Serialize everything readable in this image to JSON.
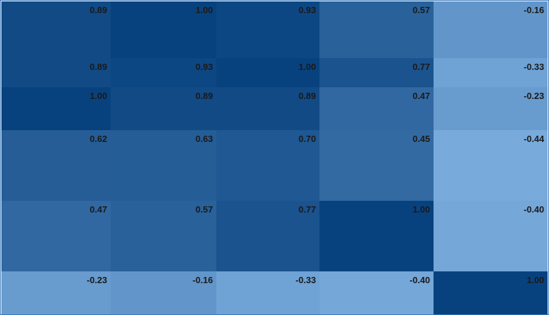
{
  "chart_data": {
    "type": "heatmap",
    "title": "",
    "xlabel": "",
    "ylabel": "",
    "values": [
      [
        "0.89",
        "1.00",
        "0.93",
        "0.57",
        "-0.16"
      ],
      [
        "0.89",
        "0.93",
        "1.00",
        "0.77",
        "-0.33"
      ],
      [
        "1.00",
        "0.89",
        "0.89",
        "0.47",
        "-0.23"
      ],
      [
        "0.62",
        "0.63",
        "0.70",
        "0.45",
        "-0.44"
      ],
      [
        "0.47",
        "0.57",
        "0.77",
        "1.00",
        "-0.40"
      ],
      [
        "-0.23",
        "-0.16",
        "-0.33",
        "-0.40",
        "1.00"
      ]
    ],
    "color_scale": {
      "min_value": -0.44,
      "max_value": 1.0,
      "low_color": "#78aadc",
      "high_color": "#08427e"
    },
    "text_color": "#1a1a1a",
    "border_color": "#3a78b8"
  }
}
